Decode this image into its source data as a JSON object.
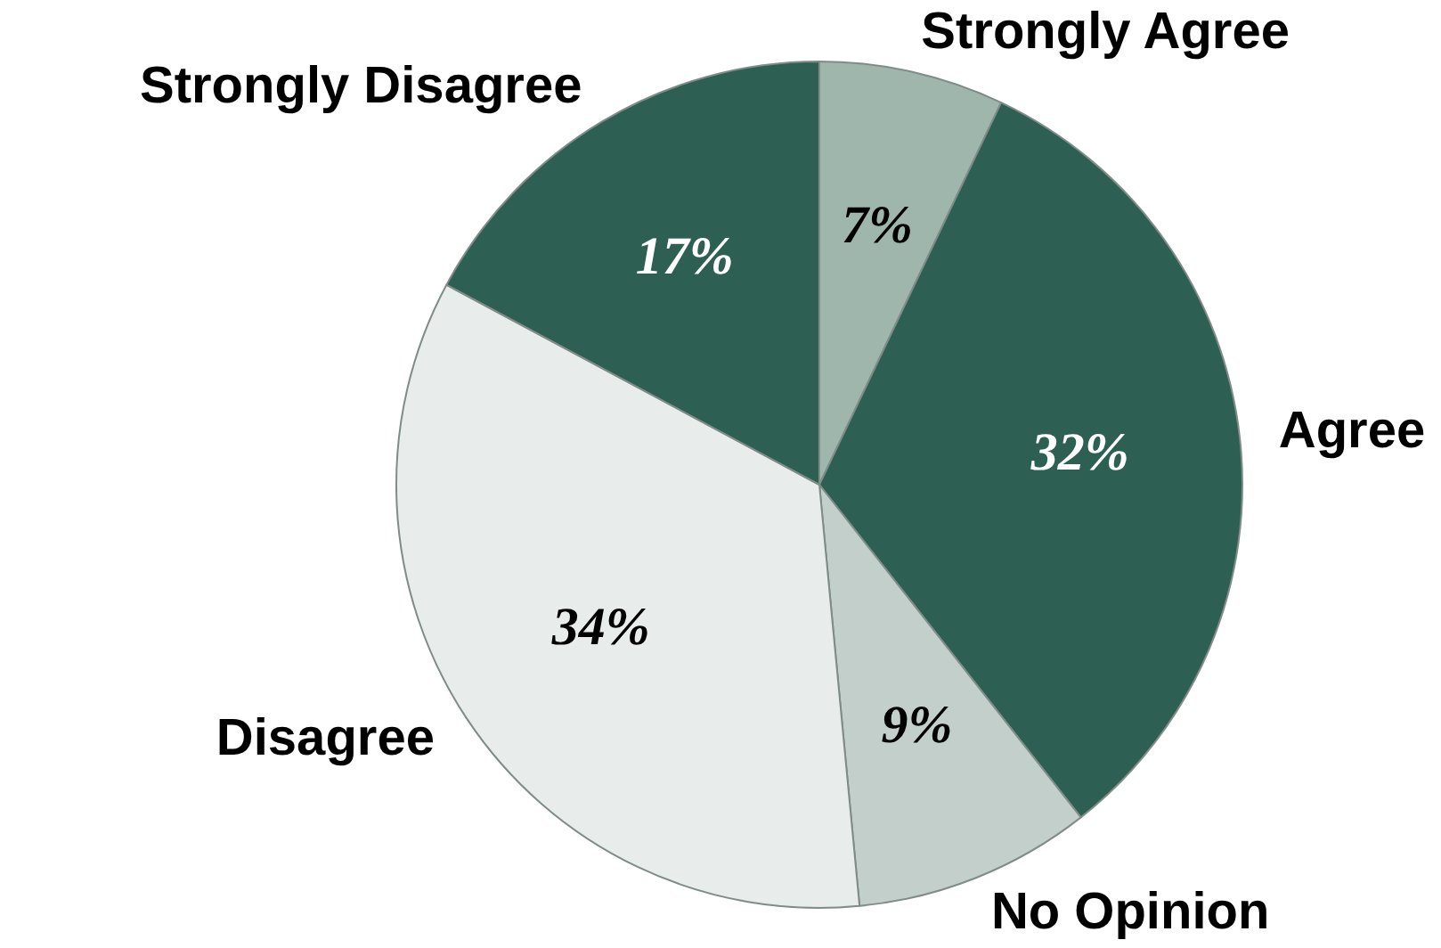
{
  "chart_data": {
    "type": "pie",
    "categories": [
      "Strongly Agree",
      "Agree",
      "No Opinion",
      "Disagree",
      "Strongly Disagree"
    ],
    "values": [
      7,
      32,
      9,
      34,
      17
    ],
    "colors": [
      "#9fb6ad",
      "#2e5f53",
      "#c2cfca",
      "#e8ecea",
      "#2e5f53"
    ],
    "value_labels": [
      "7%",
      "32%",
      "9%",
      "34%",
      "17%"
    ],
    "legend": false
  }
}
